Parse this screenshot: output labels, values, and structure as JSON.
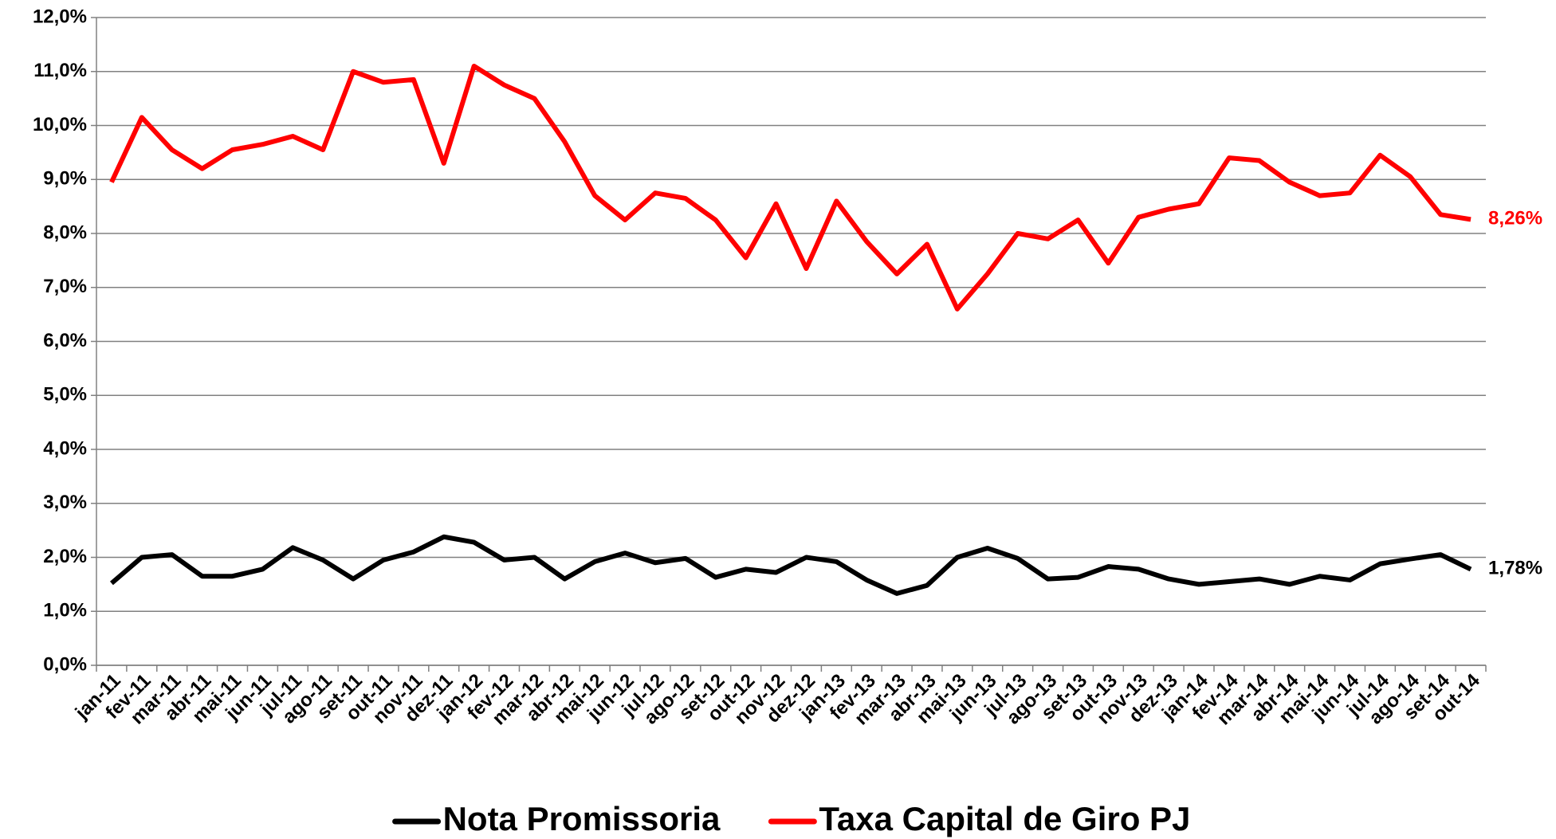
{
  "chart_data": {
    "type": "line",
    "categories": [
      "jan-11",
      "fev-11",
      "mar-11",
      "abr-11",
      "mai-11",
      "jun-11",
      "jul-11",
      "ago-11",
      "set-11",
      "out-11",
      "nov-11",
      "dez-11",
      "jan-12",
      "fev-12",
      "mar-12",
      "abr-12",
      "mai-12",
      "jun-12",
      "jul-12",
      "ago-12",
      "set-12",
      "out-12",
      "nov-12",
      "dez-12",
      "jan-13",
      "fev-13",
      "mar-13",
      "abr-13",
      "mai-13",
      "jun-13",
      "jul-13",
      "ago-13",
      "set-13",
      "out-13",
      "nov-13",
      "dez-13",
      "jan-14",
      "fev-14",
      "mar-14",
      "abr-14",
      "mai-14",
      "jun-14",
      "jul-14",
      "ago-14",
      "set-14",
      "out-14"
    ],
    "series": [
      {
        "name": "Nota Promissoria",
        "color": "#000000",
        "values": [
          1.52,
          2.0,
          2.05,
          1.65,
          1.65,
          1.78,
          2.18,
          1.95,
          1.6,
          1.95,
          2.1,
          2.38,
          2.28,
          1.95,
          2.0,
          1.6,
          1.92,
          2.08,
          1.9,
          1.98,
          1.63,
          1.78,
          1.72,
          2.0,
          1.92,
          1.58,
          1.33,
          1.48,
          2.0,
          2.17,
          1.98,
          1.6,
          1.63,
          1.83,
          1.78,
          1.6,
          1.5,
          1.55,
          1.6,
          1.5,
          1.65,
          1.58,
          1.88,
          1.97,
          2.05,
          1.78
        ],
        "value_labels": [
          null,
          null,
          null,
          null,
          null,
          null,
          null,
          null,
          null,
          null,
          null,
          null,
          null,
          null,
          null,
          null,
          null,
          null,
          null,
          null,
          null,
          null,
          null,
          null,
          null,
          null,
          null,
          null,
          null,
          null,
          null,
          null,
          null,
          null,
          null,
          null,
          null,
          null,
          null,
          null,
          null,
          null,
          null,
          null,
          null,
          "1,78%"
        ]
      },
      {
        "name": "Taxa Capital de Giro PJ",
        "color": "#ff0000",
        "values": [
          8.95,
          10.15,
          9.55,
          9.2,
          9.55,
          9.65,
          9.8,
          9.55,
          11.0,
          10.8,
          10.85,
          9.3,
          11.1,
          10.75,
          10.5,
          9.7,
          8.7,
          8.25,
          8.75,
          8.65,
          8.25,
          7.55,
          8.55,
          7.35,
          8.6,
          7.85,
          7.25,
          7.8,
          6.6,
          7.25,
          8.0,
          7.9,
          8.25,
          7.45,
          8.3,
          8.45,
          8.55,
          9.4,
          9.35,
          8.95,
          8.7,
          8.75,
          9.45,
          9.05,
          8.35,
          8.26
        ],
        "value_labels": [
          null,
          null,
          null,
          null,
          null,
          null,
          null,
          null,
          null,
          null,
          null,
          null,
          null,
          null,
          null,
          null,
          null,
          null,
          null,
          null,
          null,
          null,
          null,
          null,
          null,
          null,
          null,
          null,
          null,
          null,
          null,
          null,
          null,
          null,
          null,
          null,
          null,
          null,
          null,
          null,
          null,
          null,
          null,
          null,
          null,
          "8,26%"
        ]
      }
    ],
    "ylim": [
      0,
      12
    ],
    "yticks": [
      {
        "value": 0,
        "label": "0,0%"
      },
      {
        "value": 1,
        "label": "1,0%"
      },
      {
        "value": 2,
        "label": "2,0%"
      },
      {
        "value": 3,
        "label": "3,0%"
      },
      {
        "value": 4,
        "label": "4,0%"
      },
      {
        "value": 5,
        "label": "5,0%"
      },
      {
        "value": 6,
        "label": "6,0%"
      },
      {
        "value": 7,
        "label": "7,0%"
      },
      {
        "value": 8,
        "label": "8,0%"
      },
      {
        "value": 9,
        "label": "9,0%"
      },
      {
        "value": 10,
        "label": "10,0%"
      },
      {
        "value": 11,
        "label": "11,0%"
      },
      {
        "value": 12,
        "label": "12,0%"
      }
    ],
    "grid": true,
    "legend": "bottom"
  }
}
